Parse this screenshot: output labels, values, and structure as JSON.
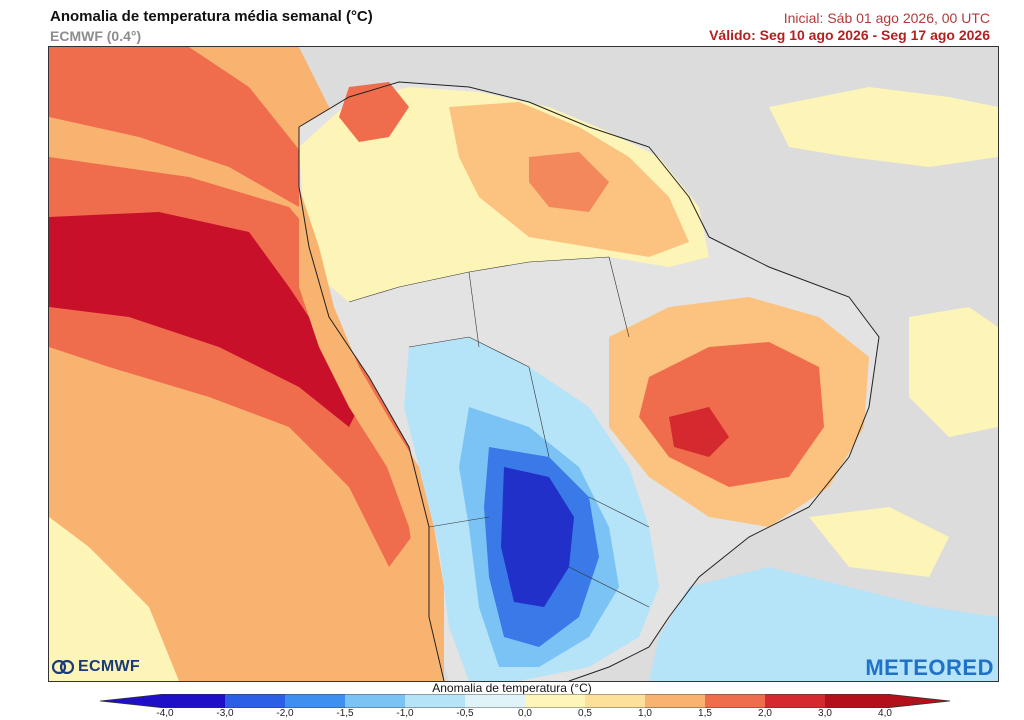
{
  "header": {
    "title": "Anomalia de temperatura média semanal (°C)",
    "model": "ECMWF (0.4°)",
    "initial": "Inicial: Sáb 01 ago 2026, 00 UTC",
    "valid": "Válido: Seg 10 ago 2026 - Seg 17 ago 2026"
  },
  "logos": {
    "ecmwf": "ECMWF",
    "meteored": "METEORED"
  },
  "colorbar": {
    "title": "Anomalia de temperatura (°C)",
    "ticks": [
      "-4,0",
      "-3,0",
      "-2,0",
      "-1,5",
      "-1,0",
      "-0,5",
      "0,0",
      "0,5",
      "1,0",
      "1,5",
      "2,0",
      "3,0",
      "4,0"
    ],
    "colors": [
      "#1f10c8",
      "#2b5fe6",
      "#3d8ff0",
      "#7cc3f5",
      "#b5e3f8",
      "#dff3f9",
      "#d9d9d9",
      "#fdf6b8",
      "#fde09a",
      "#f9b370",
      "#ef6c4d",
      "#d42a2f",
      "#b3101c"
    ]
  },
  "colors": {
    "neutral": "#dcdcdc",
    "warm_light": "#fdf4b8",
    "warm": "#fbc37f",
    "hot": "#ef6a4c",
    "very_hot": "#c8102a",
    "cool": "#a8dcf6",
    "cold": "#3a7ae8",
    "very_cold": "#2030c9"
  }
}
